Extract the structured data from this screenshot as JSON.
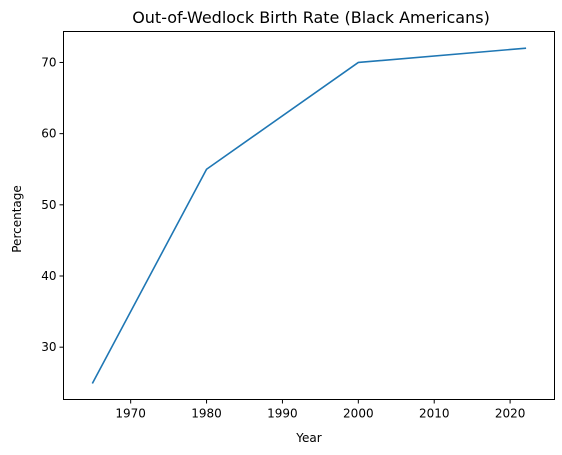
{
  "chart_data": {
    "type": "line",
    "title": "Out-of-Wedlock Birth Rate (Black Americans)",
    "xlabel": "Year",
    "ylabel": "Percentage",
    "xlim": [
      1961.15,
      2025.85
    ],
    "ylim": [
      22.65,
      74.35
    ],
    "xticks": [
      1970,
      1980,
      1990,
      2000,
      2010,
      2020
    ],
    "yticks": [
      30,
      40,
      50,
      60,
      70
    ],
    "grid": false,
    "series": [
      {
        "color": "#1f77b4",
        "x": [
          1965,
          1980,
          2000,
          2022
        ],
        "y": [
          25,
          55,
          70,
          72
        ]
      }
    ]
  }
}
